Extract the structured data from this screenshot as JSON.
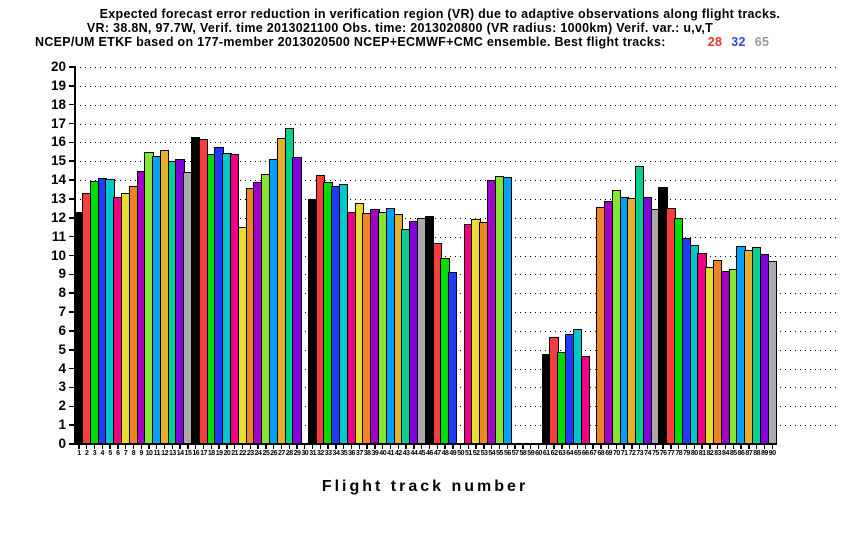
{
  "title": {
    "line1": "Expected forecast error reduction in verification region (VR) due to adaptive observations along flight tracks.",
    "line2": "VR: 38.8N, 97.7W, Verif. time 2013021100 Obs. time: 2013020800 (VR radius: 1000km)  Verif. var.: u,v,T",
    "line3": "NCEP/UM ETKF based on 177-member 2013020500 NCEP+ECMWF+CMC ensemble. Best flight tracks:",
    "best_tracks": [
      {
        "label": "28",
        "color": "#e8342c"
      },
      {
        "label": "32",
        "color": "#3448e0"
      },
      {
        "label": "65",
        "color": "#999999"
      }
    ]
  },
  "xaxis_title": "Flight track number",
  "chart_data": {
    "type": "bar",
    "title": "Expected forecast error reduction in verification region (VR) due to adaptive observations along flight tracks.",
    "xlabel": "Flight track number",
    "ylabel": "",
    "ylim": [
      0,
      20
    ],
    "yticks": [
      0,
      1,
      2,
      3,
      4,
      5,
      6,
      7,
      8,
      9,
      10,
      11,
      12,
      13,
      14,
      15,
      16,
      17,
      18,
      19,
      20
    ],
    "grid": "horizontal dotted lines at every integer from 1 to 20",
    "legend": "none",
    "x": [
      1,
      2,
      3,
      4,
      5,
      6,
      7,
      8,
      9,
      10,
      11,
      12,
      13,
      14,
      15,
      16,
      17,
      18,
      19,
      20,
      21,
      22,
      23,
      24,
      25,
      26,
      27,
      28,
      29,
      30,
      31,
      32,
      33,
      34,
      35,
      36,
      37,
      38,
      39,
      40,
      41,
      42,
      43,
      44,
      45,
      46,
      47,
      48,
      49,
      50,
      51,
      52,
      53,
      54,
      55,
      56,
      57,
      58,
      59,
      60,
      61,
      62,
      63,
      64,
      65,
      66,
      67,
      68,
      69,
      70,
      71,
      72,
      73,
      74,
      75,
      76,
      77,
      78,
      79,
      80,
      81,
      82,
      83,
      84,
      85,
      86,
      87,
      88,
      89,
      90
    ],
    "values": [
      12.3,
      13.3,
      13.95,
      14.1,
      14.05,
      13.1,
      13.3,
      13.7,
      14.5,
      15.5,
      15.3,
      15.6,
      15.0,
      15.1,
      14.45,
      16.3,
      16.2,
      15.4,
      15.75,
      15.45,
      15.4,
      11.5,
      13.6,
      13.9,
      14.3,
      15.1,
      16.25,
      16.75,
      15.2,
      0,
      13.0,
      14.25,
      13.9,
      13.7,
      13.8,
      12.3,
      12.8,
      12.25,
      12.45,
      12.3,
      12.5,
      12.2,
      11.4,
      11.85,
      12.0,
      12.1,
      10.65,
      9.85,
      9.15,
      0,
      11.65,
      11.95,
      11.8,
      14.0,
      14.2,
      14.15,
      0,
      0,
      0,
      0,
      4.8,
      5.65,
      4.9,
      5.85,
      6.1,
      4.65,
      0,
      12.55,
      12.9,
      13.5,
      13.1,
      13.05,
      14.75,
      13.1,
      12.45,
      13.65,
      12.5,
      12.0,
      10.95,
      10.55,
      10.15,
      9.4,
      9.75,
      9.2,
      9.3,
      10.5,
      10.3,
      10.45,
      10.1,
      9.7
    ],
    "empty_slots": [
      30,
      50,
      57,
      58,
      59,
      60,
      67
    ],
    "bar_color_cycle": [
      "#000000",
      "#fa3c3c",
      "#00dc00",
      "#1e3cff",
      "#00c8c8",
      "#f00082",
      "#e6dc32",
      "#f08228",
      "#a000c8",
      "#82e632",
      "#00a0ff",
      "#e6af2d",
      "#00d28c",
      "#8200dc",
      "#aaaaaa"
    ],
    "bar_color_cycle_names": [
      "black",
      "red",
      "green",
      "blue",
      "cyan",
      "magenta",
      "yellow",
      "orange",
      "purple",
      "yellow-green",
      "azure",
      "dark-yellow",
      "aqua",
      "dark-purple",
      "gray"
    ],
    "color_rule": "bar color = bar_color_cycle[(flight_track_number - 1) mod 15]",
    "best_flight_tracks": [
      28,
      32,
      65
    ]
  }
}
